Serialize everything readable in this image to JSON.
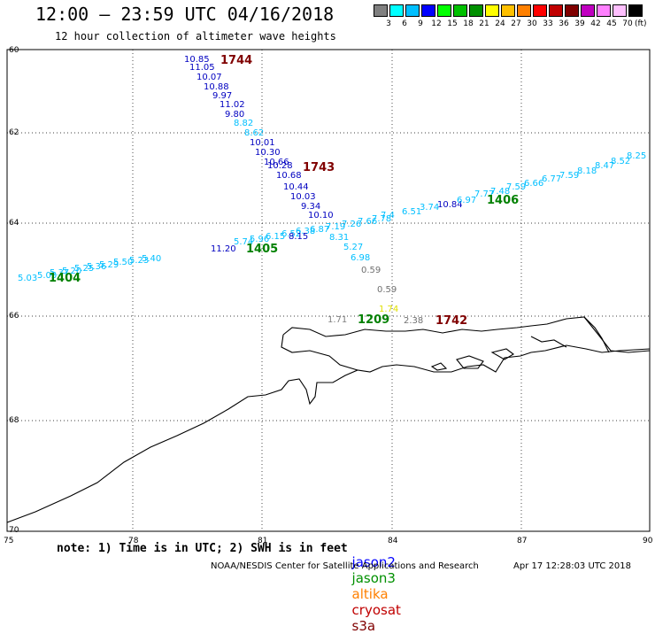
{
  "header": {
    "title": "12:00 – 23:59 UTC 04/16/2018",
    "subtitle": "12 hour collection of altimeter wave heights"
  },
  "legend": {
    "colors": [
      "#808080",
      "#00ffff",
      "#00bfff",
      "#0000ff",
      "#00ff00",
      "#00c000",
      "#009000",
      "#ffff00",
      "#ffc000",
      "#ff8000",
      "#ff0000",
      "#c00000",
      "#800000",
      "#c000c0",
      "#ff80ff",
      "#ffc0ff",
      "#000000"
    ],
    "ticks": [
      "3",
      "6",
      "9",
      "12",
      "15",
      "18",
      "21",
      "24",
      "27",
      "30",
      "33",
      "36",
      "39",
      "42",
      "45",
      "70"
    ],
    "unit": "(ft)"
  },
  "axes": {
    "lat_labels": [
      "60",
      "62",
      "64",
      "66",
      "68",
      "70"
    ],
    "lon_labels": [
      "75",
      "78",
      "81",
      "84",
      "87",
      "90"
    ]
  },
  "tracks": {
    "jason2": {
      "color": "#0000c0",
      "values": [
        "10.85",
        "11.05",
        "10.07",
        "10.88",
        "9.97",
        "11.02",
        "9.80",
        "8.82",
        "8.62",
        "10.01",
        "10.30",
        "10.66",
        "10.28",
        "10.68",
        "10.44",
        "10.03",
        "9.34",
        "10.10",
        "8.31",
        "5.27",
        "6.98",
        "0.59",
        "0.59",
        "1.74",
        "2.38"
      ],
      "value_colors": [
        "#0000c0",
        "#0000c0",
        "#0000c0",
        "#0000c0",
        "#0000c0",
        "#0000c0",
        "#0000c0",
        "#00bfff",
        "#00bfff",
        "#0000c0",
        "#0000c0",
        "#0000c0",
        "#0000c0",
        "#0000c0",
        "#0000c0",
        "#0000c0",
        "#0000c0",
        "#0000c0",
        "#00bfff",
        "#00bfff",
        "#00bfff",
        "#707070",
        "#707070",
        "#e0e000",
        "#707070"
      ]
    },
    "jason3_east": {
      "values": [
        "10.84",
        "6.97",
        "7.77",
        "7.48",
        "7.59",
        "6.66",
        "6.77",
        "7.59",
        "8.18",
        "8.47",
        "8.52",
        "8.25",
        "7.4",
        "6.51",
        "3.74"
      ],
      "colors": [
        "#0000c0",
        "#00bfff",
        "#00bfff",
        "#00bfff",
        "#00bfff",
        "#00bfff",
        "#00bfff",
        "#00bfff",
        "#00bfff",
        "#00bfff",
        "#00bfff",
        "#00bfff",
        "#00bfff",
        "#00bfff",
        "#00bfff"
      ]
    },
    "jason3_west": {
      "values": [
        "5.03",
        "11.20"
      ],
      "colors": [
        "#00bfff",
        "#0000c0"
      ]
    },
    "extra_left": {
      "values": [
        "1.71"
      ]
    },
    "pass_labels": [
      {
        "text": "1744",
        "color": "#800000"
      },
      {
        "text": "1743",
        "color": "#800000"
      },
      {
        "text": "1742",
        "color": "#800000"
      },
      {
        "text": "1406",
        "color": "#008000"
      },
      {
        "text": "1405",
        "color": "#008000"
      },
      {
        "text": "1404",
        "color": "#008000"
      },
      {
        "text": "1209",
        "color": "#008000"
      }
    ]
  },
  "footer": {
    "note": "note: 1) Time is in UTC; 2) SWH is in feet",
    "satellites": [
      {
        "name": "jason2",
        "color": "#0000ff"
      },
      {
        "name": "jason3",
        "color": "#009000"
      },
      {
        "name": "altika",
        "color": "#ff8000"
      },
      {
        "name": "cryosat",
        "color": "#c00000"
      },
      {
        "name": "s3a",
        "color": "#800000"
      }
    ],
    "credit": "NOAA/NESDIS Center for Satellite Applications and Research",
    "timestamp": "Apr 17 12:28:03 UTC 2018"
  }
}
